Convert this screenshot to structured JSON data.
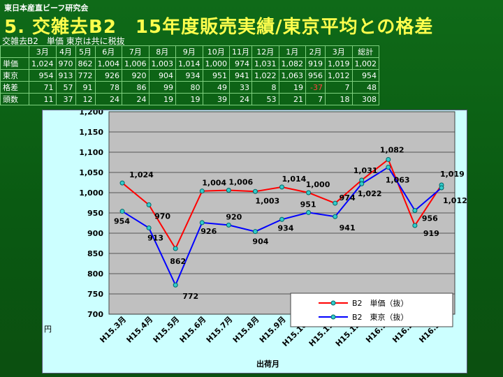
{
  "header": {
    "org": "東日本産直ビーフ研究会",
    "title": "5. 交雑去B2　15年度販売実績/東京平均との格差",
    "subnote": "交雑去B2　単価 東京は共に税抜"
  },
  "table": {
    "columns": [
      "3月",
      "4月",
      "5月",
      "6月",
      "7月",
      "8月",
      "9月",
      "10月",
      "11月",
      "12月",
      "1月",
      "2月",
      "3月",
      "総計"
    ],
    "rows": [
      {
        "label": "単価",
        "values": [
          "1,024",
          "970",
          "862",
          "1,004",
          "1,006",
          "1,003",
          "1,014",
          "1,000",
          "974",
          "1,031",
          "1,082",
          "919",
          "1,019",
          "1,002"
        ]
      },
      {
        "label": "東京",
        "values": [
          "954",
          "913",
          "772",
          "926",
          "920",
          "904",
          "934",
          "951",
          "941",
          "1,022",
          "1,063",
          "956",
          "1,012",
          "954"
        ]
      },
      {
        "label": "格差",
        "values": [
          "71",
          "57",
          "91",
          "78",
          "86",
          "99",
          "80",
          "49",
          "33",
          "8",
          "19",
          "-37",
          "7",
          "48"
        ]
      },
      {
        "label": "頭数",
        "values": [
          "11",
          "37",
          "12",
          "24",
          "24",
          "19",
          "19",
          "39",
          "24",
          "53",
          "21",
          "7",
          "18",
          "308"
        ]
      }
    ],
    "negative_color": "#ff4444"
  },
  "chart_data": {
    "type": "line",
    "categories": [
      "H15.3月",
      "H15.4月",
      "H15.5月",
      "H15.6月",
      "H15.7月",
      "H15.8月",
      "H15.9月",
      "H15.10月",
      "H15.11月",
      "H15.12月",
      "H16.1月",
      "H16.2月",
      "H16.3月"
    ],
    "series": [
      {
        "name": "B2　単価（抜）",
        "color": "#ff0000",
        "values": [
          1024,
          970,
          862,
          1004,
          1006,
          1003,
          1014,
          1000,
          974,
          1031,
          1082,
          919,
          1019
        ],
        "labels": [
          "1,024",
          "970",
          "862",
          "1,004",
          "1,006",
          "1,003",
          "1,014",
          "1,000",
          "974",
          "1,031",
          "1,082",
          "919",
          "1,019"
        ]
      },
      {
        "name": "B2　東京（抜）",
        "color": "#0000ff",
        "values": [
          954,
          913,
          772,
          926,
          920,
          904,
          934,
          951,
          941,
          1022,
          1063,
          956,
          1012
        ],
        "labels": [
          "954",
          "913",
          "772",
          "926",
          "920",
          "904",
          "934",
          "951",
          "941",
          "1,022",
          "1,063",
          "956",
          "1,012"
        ]
      }
    ],
    "ylim": [
      700,
      1200
    ],
    "yticks": [
      "700",
      "750",
      "800",
      "850",
      "900",
      "950",
      "1,000",
      "1,050",
      "1,100",
      "1,150",
      "1,200"
    ],
    "ylabel": "円",
    "xlabel": "出荷月",
    "grid": true,
    "legend": "bottom-right"
  }
}
